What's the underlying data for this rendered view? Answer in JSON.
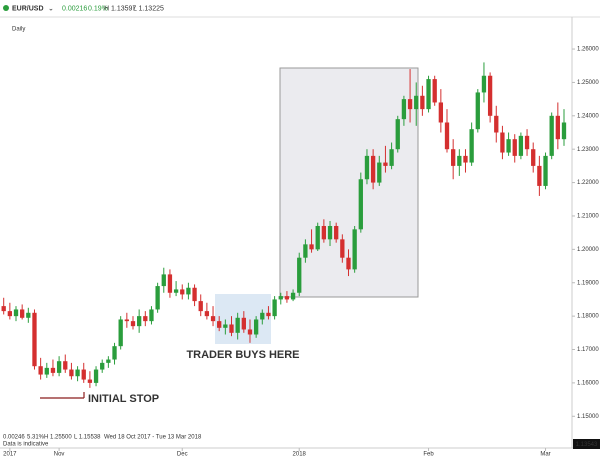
{
  "chart_data": {
    "type": "candlestick",
    "title": "EUR/USD",
    "header_stats": [
      "0.00216",
      "0.19%",
      "H 1.13597",
      "L 1.13225"
    ],
    "period": "Daily",
    "footer_stats": [
      "0.00246",
      "5.31%",
      "H 1.25500",
      "L 1.15538",
      "Wed 18 Oct 2017 - Tue 13 Mar 2018"
    ],
    "footer_note": "Data is indicative",
    "last_price": "1.13543",
    "annotations": [
      "TRADER BUYS HERE",
      "INITIAL STOP"
    ],
    "up_color": "#2a9d3c",
    "down_color": "#d42f2f",
    "ylim": [
      1.1405,
      1.2681
    ],
    "yticks": [
      {
        "value": 1.15,
        "label": "1.15000"
      },
      {
        "value": 1.16,
        "label": "1.16000"
      },
      {
        "value": 1.17,
        "label": "1.17000"
      },
      {
        "value": 1.18,
        "label": "1.18000"
      },
      {
        "value": 1.19,
        "label": "1.19000"
      },
      {
        "value": 1.2,
        "label": "1.20000"
      },
      {
        "value": 1.21,
        "label": "1.21000"
      },
      {
        "value": 1.22,
        "label": "1.22000"
      },
      {
        "value": 1.23,
        "label": "1.23000"
      },
      {
        "value": 1.24,
        "label": "1.24000"
      },
      {
        "value": 1.25,
        "label": "1.25000"
      },
      {
        "value": 1.26,
        "label": "1.26000"
      }
    ],
    "xlim": [
      -0.6,
      92.3
    ],
    "xticks": [
      {
        "value": 1,
        "label": "2017"
      },
      {
        "value": 9,
        "label": "Nov"
      },
      {
        "value": 29,
        "label": "Dec"
      },
      {
        "value": 48,
        "label": "2018"
      },
      {
        "value": 69,
        "label": "Feb"
      },
      {
        "value": 88,
        "label": "Mar"
      }
    ],
    "open": [
      1.183,
      1.1815,
      1.18,
      1.182,
      1.1795,
      1.181,
      1.165,
      1.1625,
      1.1645,
      1.163,
      1.1665,
      1.164,
      1.162,
      1.164,
      1.161,
      1.16,
      1.164,
      1.166,
      1.167,
      1.171,
      1.179,
      1.1785,
      1.177,
      1.18,
      1.1785,
      1.182,
      1.189,
      1.1925,
      1.187,
      1.188,
      1.1865,
      1.1885,
      1.1845,
      1.1815,
      1.18,
      1.1785,
      1.1765,
      1.1775,
      1.175,
      1.1795,
      1.176,
      1.1745,
      1.179,
      1.181,
      1.18,
      1.185,
      1.186,
      1.185,
      1.187,
      1.1975,
      1.2015,
      1.2,
      1.207,
      1.203,
      1.207,
      1.203,
      1.1975,
      1.194,
      1.206,
      1.221,
      1.228,
      1.22,
      1.226,
      1.225,
      1.23,
      1.239,
      1.245,
      1.242,
      1.246,
      1.242,
      1.251,
      1.244,
      1.238,
      1.23,
      1.225,
      1.228,
      1.226,
      1.236,
      1.247,
      1.252,
      1.24,
      1.235,
      1.229,
      1.233,
      1.228,
      1.234,
      1.23,
      1.225,
      1.219,
      1.228,
      1.24,
      1.233
    ],
    "high": [
      1.1855,
      1.184,
      1.183,
      1.1835,
      1.1825,
      1.182,
      1.1675,
      1.166,
      1.167,
      1.168,
      1.1685,
      1.166,
      1.165,
      1.166,
      1.1635,
      1.165,
      1.167,
      1.168,
      1.172,
      1.18,
      1.181,
      1.18,
      1.182,
      1.1815,
      1.183,
      1.19,
      1.1945,
      1.194,
      1.1905,
      1.1895,
      1.19,
      1.1895,
      1.1865,
      1.184,
      1.183,
      1.18,
      1.179,
      1.18,
      1.181,
      1.1815,
      1.179,
      1.18,
      1.182,
      1.183,
      1.186,
      1.187,
      1.1875,
      1.188,
      1.199,
      1.203,
      1.206,
      1.208,
      1.209,
      1.2085,
      1.208,
      1.2045,
      1.2,
      1.207,
      1.223,
      1.23,
      1.23,
      1.228,
      1.231,
      1.232,
      1.24,
      1.246,
      1.254,
      1.25,
      1.249,
      1.252,
      1.252,
      1.248,
      1.242,
      1.233,
      1.23,
      1.23,
      1.238,
      1.248,
      1.256,
      1.253,
      1.243,
      1.237,
      1.235,
      1.2345,
      1.235,
      1.236,
      1.232,
      1.228,
      1.229,
      1.241,
      1.244,
      1.242
    ],
    "low": [
      1.1805,
      1.179,
      1.1785,
      1.179,
      1.178,
      1.164,
      1.161,
      1.1615,
      1.162,
      1.162,
      1.163,
      1.161,
      1.1605,
      1.16,
      1.1585,
      1.159,
      1.163,
      1.1645,
      1.1655,
      1.17,
      1.1765,
      1.176,
      1.175,
      1.177,
      1.1775,
      1.181,
      1.187,
      1.1855,
      1.186,
      1.185,
      1.185,
      1.183,
      1.18,
      1.179,
      1.177,
      1.1755,
      1.1745,
      1.174,
      1.173,
      1.175,
      1.172,
      1.1735,
      1.1775,
      1.179,
      1.179,
      1.1835,
      1.184,
      1.1845,
      1.186,
      1.196,
      1.199,
      1.1995,
      1.202,
      1.201,
      1.202,
      1.196,
      1.192,
      1.193,
      1.205,
      1.2195,
      1.218,
      1.219,
      1.223,
      1.224,
      1.229,
      1.237,
      1.238,
      1.237,
      1.24,
      1.241,
      1.243,
      1.235,
      1.229,
      1.221,
      1.222,
      1.223,
      1.225,
      1.235,
      1.244,
      1.238,
      1.232,
      1.227,
      1.228,
      1.226,
      1.227,
      1.228,
      1.223,
      1.216,
      1.218,
      1.227,
      1.23,
      1.231
    ],
    "close": [
      1.1815,
      1.18,
      1.182,
      1.1795,
      1.181,
      1.165,
      1.1625,
      1.1645,
      1.163,
      1.1665,
      1.164,
      1.162,
      1.164,
      1.161,
      1.16,
      1.164,
      1.166,
      1.167,
      1.171,
      1.179,
      1.1785,
      1.177,
      1.18,
      1.1785,
      1.182,
      1.189,
      1.1925,
      1.187,
      1.188,
      1.1865,
      1.1885,
      1.1845,
      1.1815,
      1.18,
      1.1785,
      1.1765,
      1.1775,
      1.175,
      1.1795,
      1.176,
      1.1745,
      1.179,
      1.181,
      1.18,
      1.185,
      1.186,
      1.185,
      1.187,
      1.1975,
      1.2015,
      1.2,
      1.207,
      1.203,
      1.207,
      1.203,
      1.1975,
      1.194,
      1.206,
      1.221,
      1.228,
      1.22,
      1.226,
      1.225,
      1.23,
      1.239,
      1.245,
      1.242,
      1.246,
      1.242,
      1.251,
      1.244,
      1.238,
      1.23,
      1.225,
      1.228,
      1.226,
      1.236,
      1.247,
      1.252,
      1.24,
      1.235,
      1.229,
      1.233,
      1.228,
      1.234,
      1.23,
      1.225,
      1.219,
      1.228,
      1.24,
      1.233,
      1.238
    ]
  }
}
